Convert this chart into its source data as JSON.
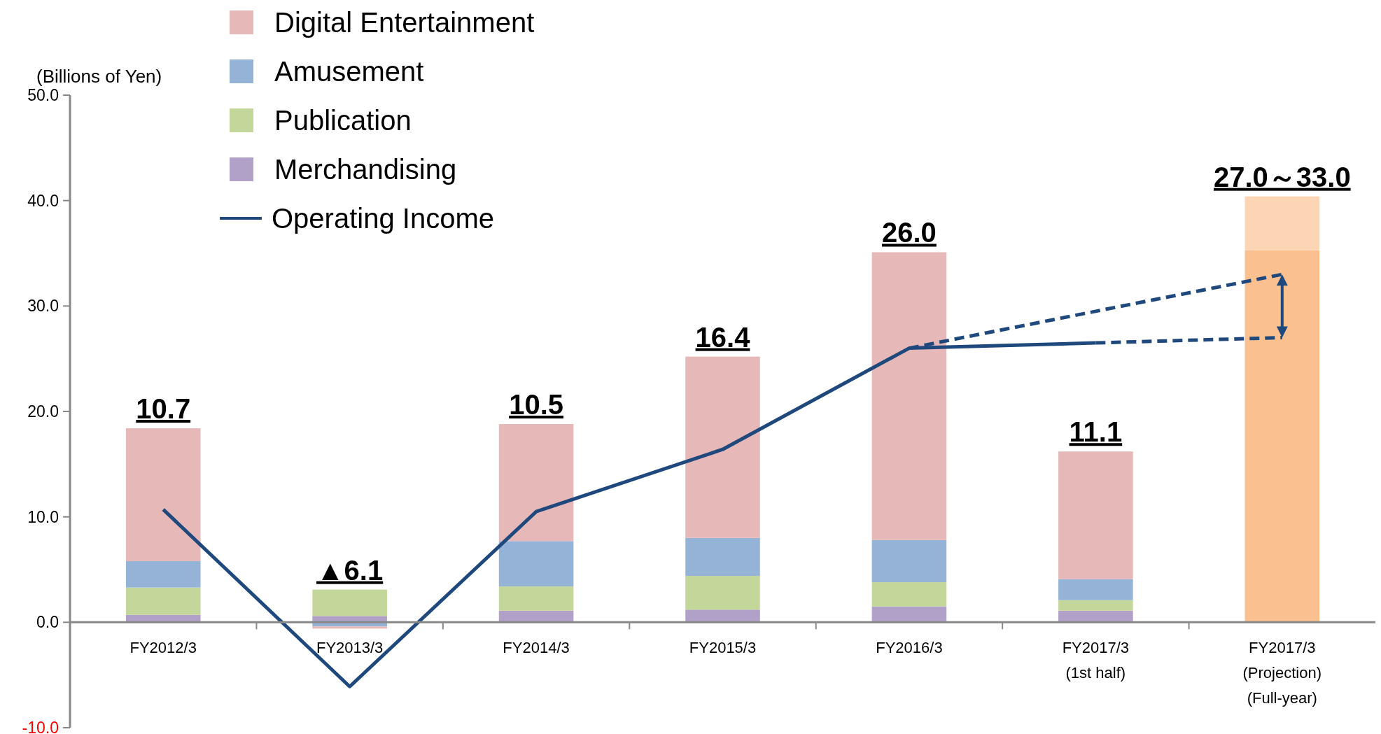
{
  "chart_data": {
    "type": "bar",
    "stacked": true,
    "ylabel": "(Billions of Yen)",
    "categories": [
      "FY2012/3",
      "FY2013/3",
      "FY2014/3",
      "FY2015/3",
      "FY2016/3",
      "FY2017/3\n(1st half)",
      "FY2017/3\n(Projection)\n(Full-year)"
    ],
    "series": [
      {
        "name": "Merchandising",
        "color": "#b1a0c7",
        "values": [
          0.7,
          0.6,
          1.1,
          1.2,
          1.5,
          1.1,
          null
        ]
      },
      {
        "name": "Publication",
        "color": "#c4d79b",
        "values": [
          2.6,
          2.5,
          2.3,
          3.2,
          2.3,
          1.0,
          null
        ]
      },
      {
        "name": "Amusement",
        "color": "#95b3d7",
        "values": [
          2.5,
          -0.4,
          4.3,
          3.6,
          4.0,
          2.0,
          null
        ]
      },
      {
        "name": "Digital Entertainment",
        "color": "#e6b8b7",
        "values": [
          12.6,
          -0.2,
          11.1,
          17.2,
          27.3,
          12.1,
          null
        ]
      },
      {
        "color": "#fac090",
        "values": [
          null,
          null,
          null,
          null,
          null,
          null,
          35.3
        ]
      },
      {
        "color": "#fcd5b4",
        "values": [
          null,
          null,
          null,
          null,
          null,
          null,
          5.1
        ]
      },
      {
        "name": "Operating Income",
        "type": "line",
        "color": "#1f497d",
        "line_style": "solid",
        "values": [
          10.7,
          -6.1,
          10.5,
          16.4,
          26.0,
          26.5,
          null
        ]
      },
      {
        "type": "line",
        "color": "#1f497d",
        "line_style": "dashed",
        "values": [
          null,
          null,
          null,
          null,
          26.0,
          null,
          33.0
        ]
      },
      {
        "type": "line",
        "color": "#1f497d",
        "line_style": "dashed",
        "values": [
          null,
          null,
          null,
          null,
          null,
          26.5,
          27.0
        ]
      }
    ],
    "annotations": [
      {
        "text": "10.7",
        "x": "FY2012/3",
        "y": 18.4
      },
      {
        "text": "▲6.1",
        "x": "FY2013/3",
        "y": 3.1
      },
      {
        "text": "10.5",
        "x": "FY2014/3",
        "y": 18.8
      },
      {
        "text": "16.4",
        "x": "FY2015/3",
        "y": 25.2
      },
      {
        "text": "26.0",
        "x": "FY2016/3",
        "y": 35.1
      },
      {
        "text": "11.1",
        "x": "FY2017/3\n(1st half)",
        "y": 16.2
      },
      {
        "text": "27.0～33.0",
        "x": "FY2017/3\n(Projection)\n(Full-year)",
        "y": 40.4
      }
    ],
    "ylim": [
      -10,
      50
    ],
    "yticks": [
      {
        "value": -10,
        "label": "-10.0"
      },
      {
        "value": 0,
        "label": "0.0"
      },
      {
        "value": 10,
        "label": "10.0"
      },
      {
        "value": 20,
        "label": "20.0"
      },
      {
        "value": 30,
        "label": "30.0"
      },
      {
        "value": 40,
        "label": "40.0"
      },
      {
        "value": 50,
        "label": "50.0"
      }
    ],
    "grid": false,
    "legend": "top left",
    "marker": "none"
  }
}
